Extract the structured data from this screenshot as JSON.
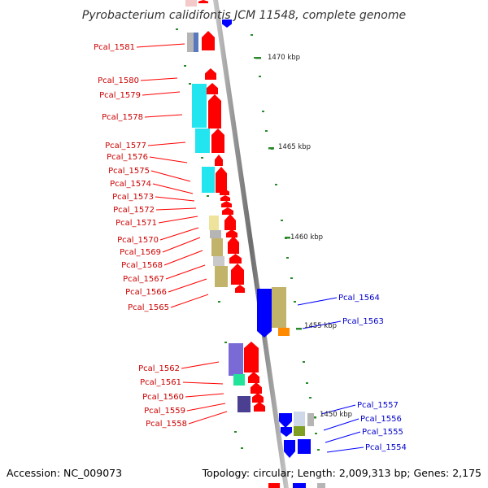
{
  "title": "Pyrobacterium calidifontis JCM 11548, complete genome",
  "footer": {
    "accession": "Accession: NC_009073",
    "topology": "Topology: circular; Length: 2,009,313 bp; Genes: 2,175"
  },
  "scale_labels": [
    "1470 kbp",
    "1465 kbp",
    "1460 kbp",
    "1455 kbp",
    "1450 kbp"
  ],
  "left_genes": [
    "Pcal_1581",
    "Pcal_1580",
    "Pcal_1579",
    "Pcal_1578",
    "Pcal_1577",
    "Pcal_1576",
    "Pcal_1575",
    "Pcal_1574",
    "Pcal_1573",
    "Pcal_1572",
    "Pcal_1571",
    "Pcal_1570",
    "Pcal_1569",
    "Pcal_1568",
    "Pcal_1567",
    "Pcal_1566",
    "Pcal_1565",
    "Pcal_1562",
    "Pcal_1561",
    "Pcal_1560",
    "Pcal_1559",
    "Pcal_1558"
  ],
  "right_genes": [
    "Pcal_1564",
    "Pcal_1563",
    "Pcal_1557",
    "Pcal_1556",
    "Pcal_1555",
    "Pcal_1554"
  ],
  "colors": {
    "forward_strand": "#ff0000",
    "reverse_strand": "#0000ff",
    "backbone": "#888888",
    "tick": "#2a8a2a",
    "cyan": "#22e5f0",
    "khaki": "#c2b36a",
    "pale_yellow": "#eee39a",
    "purple": "#7a6ad6",
    "teal": "#22e39a",
    "olive": "#7f9e24",
    "orange": "#ff8a00",
    "gray": "#b5b5b5",
    "slate_blue": "#5a78bd"
  }
}
